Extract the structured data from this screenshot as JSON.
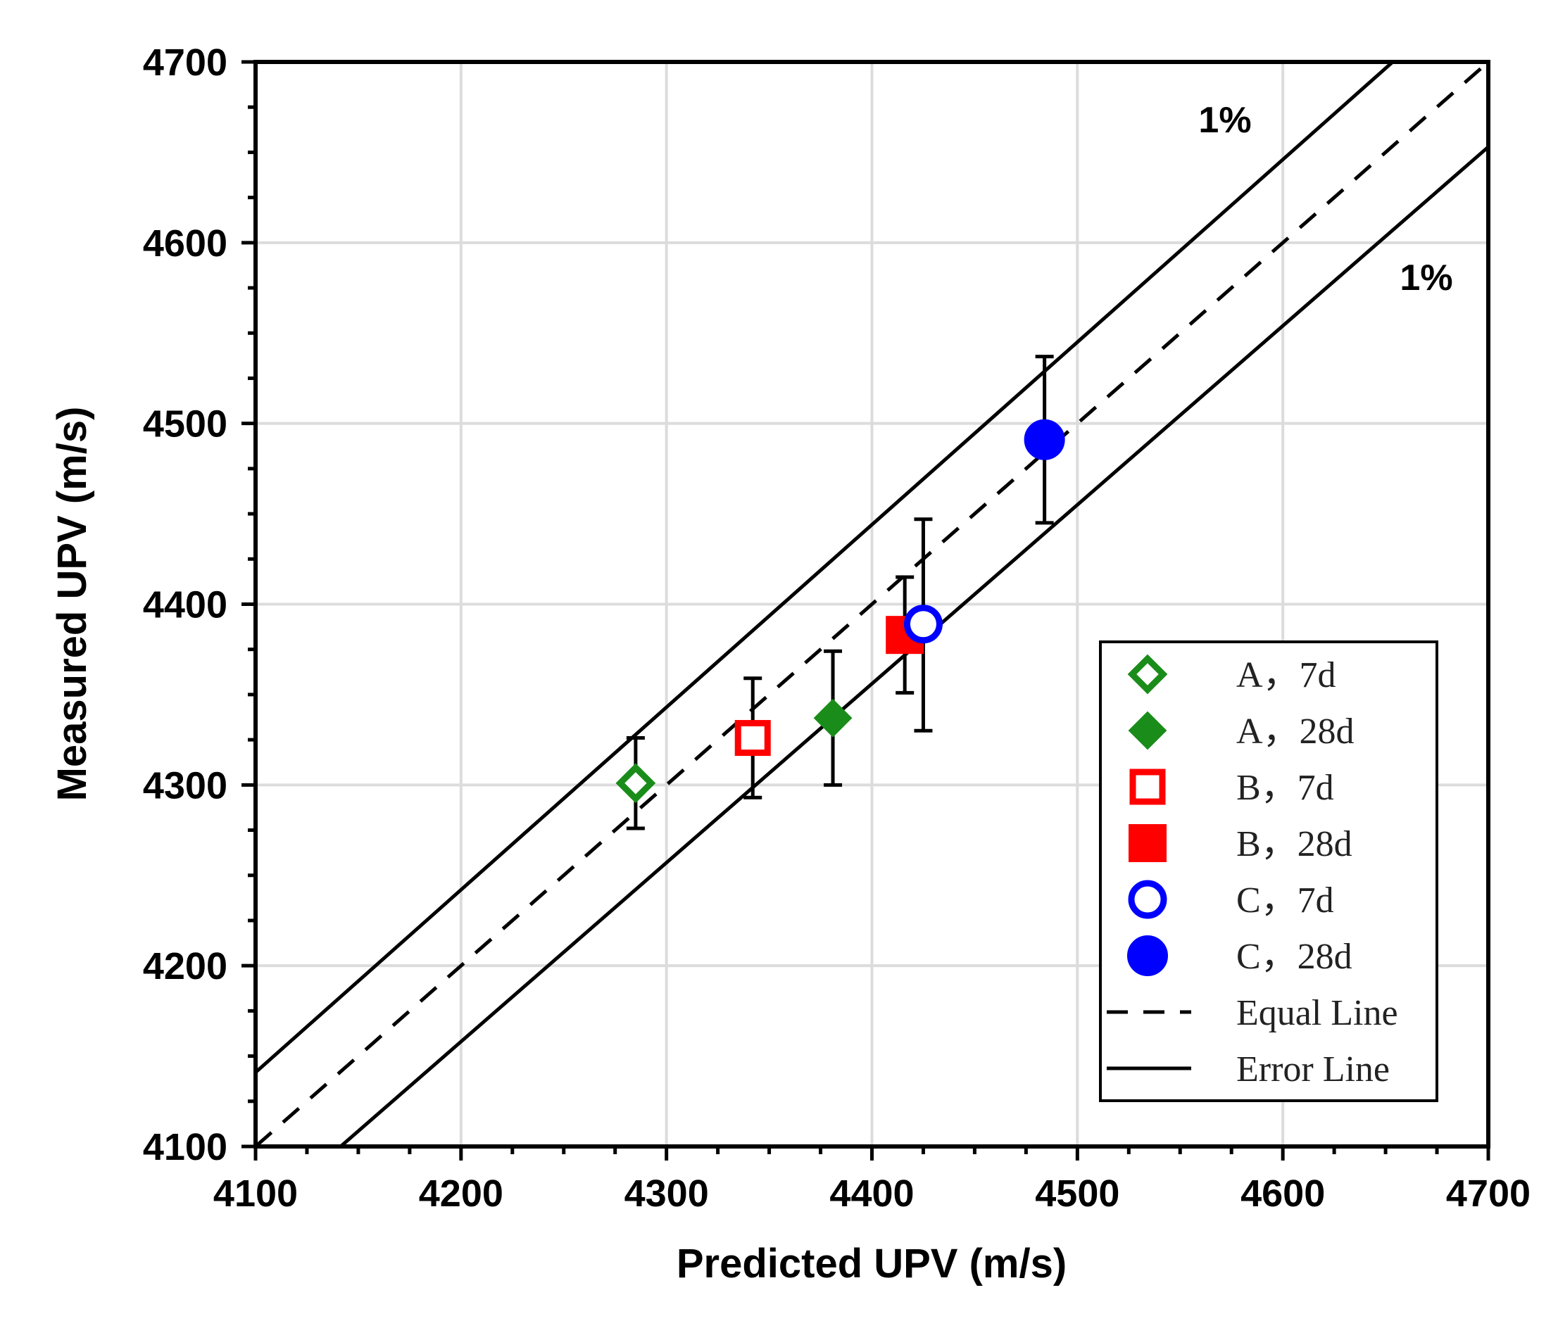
{
  "chart_data": {
    "type": "scatter",
    "title": "",
    "xlabel": "Predicted UPV (m/s)",
    "ylabel": "Measured UPV (m/s)",
    "xlim": [
      4100,
      4700
    ],
    "ylim": [
      4100,
      4700
    ],
    "xticks": [
      4100,
      4200,
      4300,
      4400,
      4500,
      4600,
      4700
    ],
    "yticks": [
      4100,
      4200,
      4300,
      4400,
      4500,
      4600,
      4700
    ],
    "xtick_labels": [
      "4100",
      "4200",
      "4300",
      "4400",
      "4500",
      "4600",
      "4700"
    ],
    "ytick_labels": [
      "4100",
      "4200",
      "4300",
      "4400",
      "4500",
      "4600",
      "4700"
    ],
    "grid": true,
    "legend_position": "bottom-right",
    "series": [
      {
        "name": "A，7d",
        "marker": "diamond-open",
        "color": "#1a8c1a",
        "x": 4285,
        "y": 4301,
        "err_low": 4276,
        "err_high": 4326
      },
      {
        "name": "A，28d",
        "marker": "diamond-filled",
        "color": "#1a8c1a",
        "x": 4381,
        "y": 4337,
        "err_low": 4300,
        "err_high": 4374
      },
      {
        "name": "B，7d",
        "marker": "square-open",
        "color": "#ff0000",
        "x": 4342,
        "y": 4326,
        "err_low": 4293,
        "err_high": 4359
      },
      {
        "name": "B，28d",
        "marker": "square-filled",
        "color": "#ff0000",
        "x": 4416,
        "y": 4383,
        "err_low": 4351,
        "err_high": 4415
      },
      {
        "name": "C，7d",
        "marker": "circle-open",
        "color": "#0000ff",
        "x": 4425,
        "y": 4389,
        "err_low": 4330,
        "err_high": 4447
      },
      {
        "name": "C，28d",
        "marker": "circle-filled",
        "color": "#0000ff",
        "x": 4484,
        "y": 4491,
        "err_low": 4445,
        "err_high": 4537
      }
    ],
    "lines": [
      {
        "name": "Equal Line",
        "style": "dashed",
        "slope": 1.0
      },
      {
        "name": "Error Line",
        "style": "solid",
        "slope": 1.01
      },
      {
        "name": "Error Line",
        "style": "solid",
        "slope": 0.99
      }
    ],
    "annotations": [
      {
        "text": "1%",
        "x": 4570,
        "y": 4665
      },
      {
        "text": "1%",
        "x": 4668,
        "y": 4572
      }
    ]
  }
}
